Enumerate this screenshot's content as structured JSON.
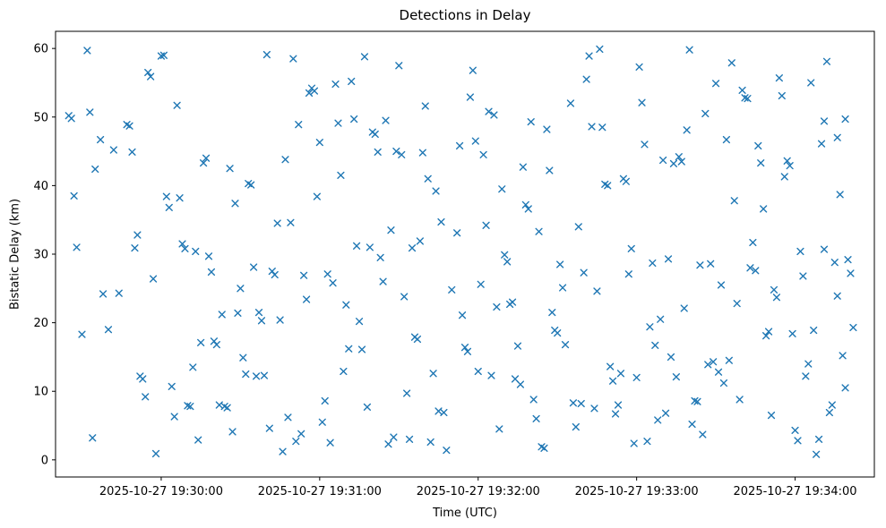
{
  "chart_data": {
    "type": "scatter",
    "title": "Detections in Delay",
    "xlabel": "Time (UTC)",
    "ylabel": "Bistatic Delay (km)",
    "marker": "x",
    "marker_color": "#1f77b4",
    "background": "#ffffff",
    "grid": false,
    "legend": "none",
    "x_axis": {
      "note": "x values are seconds relative to 2025-10-27 19:30:00 UTC",
      "lim": [
        -40,
        270
      ],
      "ticks": [
        {
          "t": 0,
          "label": "2025-10-27 19:30:00"
        },
        {
          "t": 60,
          "label": "2025-10-27 19:31:00"
        },
        {
          "t": 120,
          "label": "2025-10-27 19:32:00"
        },
        {
          "t": 180,
          "label": "2025-10-27 19:33:00"
        },
        {
          "t": 240,
          "label": "2025-10-27 19:34:00"
        }
      ]
    },
    "y_axis": {
      "lim": [
        -2.5,
        62.5
      ],
      "ticks": [
        0,
        10,
        20,
        30,
        40,
        50,
        60
      ]
    },
    "points": [
      [
        -35,
        50.2
      ],
      [
        -34,
        49.8
      ],
      [
        -33,
        38.5
      ],
      [
        -32,
        31.0
      ],
      [
        -30,
        18.3
      ],
      [
        -28,
        59.7
      ],
      [
        -27,
        50.7
      ],
      [
        -26,
        3.2
      ],
      [
        -25,
        42.4
      ],
      [
        -23,
        46.7
      ],
      [
        -22,
        24.2
      ],
      [
        -20,
        19.0
      ],
      [
        -18,
        45.2
      ],
      [
        -16,
        24.3
      ],
      [
        -13,
        48.9
      ],
      [
        -12,
        48.7
      ],
      [
        -11,
        44.9
      ],
      [
        -10,
        30.9
      ],
      [
        -9,
        32.8
      ],
      [
        -8,
        12.2
      ],
      [
        -7,
        11.8
      ],
      [
        -6,
        9.2
      ],
      [
        -5,
        56.5
      ],
      [
        -4,
        55.9
      ],
      [
        -3,
        26.4
      ],
      [
        -2,
        0.9
      ],
      [
        0,
        58.9
      ],
      [
        1,
        59.0
      ],
      [
        2,
        38.4
      ],
      [
        3,
        36.8
      ],
      [
        4,
        10.7
      ],
      [
        5,
        6.3
      ],
      [
        6,
        51.7
      ],
      [
        7,
        38.2
      ],
      [
        8,
        31.5
      ],
      [
        9,
        30.8
      ],
      [
        10,
        7.9
      ],
      [
        11,
        7.8
      ],
      [
        12,
        13.5
      ],
      [
        13,
        30.4
      ],
      [
        14,
        2.9
      ],
      [
        15,
        17.1
      ],
      [
        16,
        43.3
      ],
      [
        17,
        44.0
      ],
      [
        18,
        29.7
      ],
      [
        19,
        27.4
      ],
      [
        20,
        17.3
      ],
      [
        21,
        16.8
      ],
      [
        22,
        8.0
      ],
      [
        23,
        21.2
      ],
      [
        24,
        7.8
      ],
      [
        25,
        7.6
      ],
      [
        26,
        42.5
      ],
      [
        27,
        4.1
      ],
      [
        28,
        37.4
      ],
      [
        29,
        21.4
      ],
      [
        30,
        25.0
      ],
      [
        31,
        14.9
      ],
      [
        32,
        12.5
      ],
      [
        33,
        40.3
      ],
      [
        34,
        40.1
      ],
      [
        35,
        28.1
      ],
      [
        36,
        12.2
      ],
      [
        37,
        21.5
      ],
      [
        38,
        20.3
      ],
      [
        39,
        12.3
      ],
      [
        40,
        59.1
      ],
      [
        41,
        4.6
      ],
      [
        42,
        27.5
      ],
      [
        43,
        27.0
      ],
      [
        44,
        34.5
      ],
      [
        45,
        20.4
      ],
      [
        46,
        1.2
      ],
      [
        47,
        43.8
      ],
      [
        48,
        6.2
      ],
      [
        49,
        34.6
      ],
      [
        50,
        58.5
      ],
      [
        51,
        2.7
      ],
      [
        52,
        48.9
      ],
      [
        53,
        3.8
      ],
      [
        54,
        26.9
      ],
      [
        55,
        23.4
      ],
      [
        56,
        53.5
      ],
      [
        57,
        54.2
      ],
      [
        58,
        53.8
      ],
      [
        59,
        38.4
      ],
      [
        60,
        46.3
      ],
      [
        61,
        5.5
      ],
      [
        62,
        8.6
      ],
      [
        63,
        27.1
      ],
      [
        64,
        2.5
      ],
      [
        65,
        25.8
      ],
      [
        66,
        54.8
      ],
      [
        67,
        49.1
      ],
      [
        68,
        41.5
      ],
      [
        69,
        12.9
      ],
      [
        70,
        22.6
      ],
      [
        71,
        16.2
      ],
      [
        72,
        55.2
      ],
      [
        73,
        49.7
      ],
      [
        74,
        31.2
      ],
      [
        75,
        20.2
      ],
      [
        76,
        16.1
      ],
      [
        77,
        58.8
      ],
      [
        78,
        7.7
      ],
      [
        79,
        31.0
      ],
      [
        80,
        47.8
      ],
      [
        81,
        47.5
      ],
      [
        82,
        44.9
      ],
      [
        83,
        29.5
      ],
      [
        84,
        26.0
      ],
      [
        85,
        49.5
      ],
      [
        86,
        2.3
      ],
      [
        87,
        33.5
      ],
      [
        88,
        3.3
      ],
      [
        89,
        45.0
      ],
      [
        90,
        57.5
      ],
      [
        91,
        44.5
      ],
      [
        92,
        23.8
      ],
      [
        93,
        9.7
      ],
      [
        94,
        3.0
      ],
      [
        95,
        30.9
      ],
      [
        96,
        17.9
      ],
      [
        97,
        17.6
      ],
      [
        98,
        31.9
      ],
      [
        99,
        44.8
      ],
      [
        100,
        51.6
      ],
      [
        101,
        41.0
      ],
      [
        102,
        2.6
      ],
      [
        103,
        12.6
      ],
      [
        104,
        39.2
      ],
      [
        105,
        7.1
      ],
      [
        106,
        34.7
      ],
      [
        107,
        6.9
      ],
      [
        108,
        1.4
      ],
      [
        110,
        24.8
      ],
      [
        112,
        33.1
      ],
      [
        113,
        45.8
      ],
      [
        114,
        21.1
      ],
      [
        115,
        16.4
      ],
      [
        116,
        15.8
      ],
      [
        117,
        52.9
      ],
      [
        118,
        56.8
      ],
      [
        119,
        46.5
      ],
      [
        120,
        12.9
      ],
      [
        121,
        25.6
      ],
      [
        122,
        44.5
      ],
      [
        123,
        34.2
      ],
      [
        124,
        50.8
      ],
      [
        125,
        12.3
      ],
      [
        126,
        50.3
      ],
      [
        127,
        22.3
      ],
      [
        128,
        4.5
      ],
      [
        129,
        39.5
      ],
      [
        130,
        29.9
      ],
      [
        131,
        28.9
      ],
      [
        132,
        22.7
      ],
      [
        133,
        23.0
      ],
      [
        134,
        11.8
      ],
      [
        135,
        16.6
      ],
      [
        136,
        11.0
      ],
      [
        137,
        42.7
      ],
      [
        138,
        37.2
      ],
      [
        139,
        36.6
      ],
      [
        140,
        49.3
      ],
      [
        141,
        8.8
      ],
      [
        142,
        6.0
      ],
      [
        143,
        33.3
      ],
      [
        144,
        1.9
      ],
      [
        145,
        1.7
      ],
      [
        146,
        48.2
      ],
      [
        147,
        42.2
      ],
      [
        148,
        21.5
      ],
      [
        149,
        18.9
      ],
      [
        150,
        18.5
      ],
      [
        151,
        28.5
      ],
      [
        152,
        25.1
      ],
      [
        153,
        16.8
      ],
      [
        155,
        52.0
      ],
      [
        156,
        8.3
      ],
      [
        157,
        4.8
      ],
      [
        158,
        34.0
      ],
      [
        159,
        8.2
      ],
      [
        160,
        27.3
      ],
      [
        161,
        55.5
      ],
      [
        162,
        58.9
      ],
      [
        163,
        48.6
      ],
      [
        164,
        7.5
      ],
      [
        165,
        24.6
      ],
      [
        166,
        59.9
      ],
      [
        167,
        48.5
      ],
      [
        168,
        40.2
      ],
      [
        169,
        40.0
      ],
      [
        170,
        13.6
      ],
      [
        171,
        11.5
      ],
      [
        172,
        6.7
      ],
      [
        173,
        8.0
      ],
      [
        174,
        12.6
      ],
      [
        175,
        41.0
      ],
      [
        176,
        40.6
      ],
      [
        177,
        27.1
      ],
      [
        178,
        30.8
      ],
      [
        179,
        2.4
      ],
      [
        180,
        12.0
      ],
      [
        181,
        57.3
      ],
      [
        182,
        52.1
      ],
      [
        183,
        46.0
      ],
      [
        184,
        2.7
      ],
      [
        185,
        19.4
      ],
      [
        186,
        28.7
      ],
      [
        187,
        16.7
      ],
      [
        188,
        5.8
      ],
      [
        189,
        20.5
      ],
      [
        190,
        43.7
      ],
      [
        191,
        6.8
      ],
      [
        192,
        29.3
      ],
      [
        193,
        15.0
      ],
      [
        194,
        43.2
      ],
      [
        195,
        12.1
      ],
      [
        196,
        44.2
      ],
      [
        197,
        43.5
      ],
      [
        198,
        22.1
      ],
      [
        199,
        48.1
      ],
      [
        200,
        59.8
      ],
      [
        201,
        5.2
      ],
      [
        202,
        8.6
      ],
      [
        203,
        8.5
      ],
      [
        204,
        28.4
      ],
      [
        205,
        3.7
      ],
      [
        206,
        50.5
      ],
      [
        207,
        13.9
      ],
      [
        208,
        28.6
      ],
      [
        209,
        14.3
      ],
      [
        210,
        54.9
      ],
      [
        211,
        12.8
      ],
      [
        212,
        25.5
      ],
      [
        213,
        11.2
      ],
      [
        214,
        46.7
      ],
      [
        215,
        14.5
      ],
      [
        216,
        57.9
      ],
      [
        217,
        37.8
      ],
      [
        218,
        22.8
      ],
      [
        219,
        8.8
      ],
      [
        220,
        53.9
      ],
      [
        221,
        52.8
      ],
      [
        222,
        52.7
      ],
      [
        223,
        28.0
      ],
      [
        224,
        31.7
      ],
      [
        225,
        27.6
      ],
      [
        226,
        45.8
      ],
      [
        227,
        43.3
      ],
      [
        228,
        36.6
      ],
      [
        229,
        18.1
      ],
      [
        230,
        18.7
      ],
      [
        231,
        6.5
      ],
      [
        232,
        24.8
      ],
      [
        233,
        23.7
      ],
      [
        234,
        55.7
      ],
      [
        235,
        53.1
      ],
      [
        236,
        41.3
      ],
      [
        237,
        43.6
      ],
      [
        238,
        42.9
      ],
      [
        239,
        18.4
      ],
      [
        240,
        4.3
      ],
      [
        241,
        2.8
      ],
      [
        242,
        30.4
      ],
      [
        243,
        26.8
      ],
      [
        244,
        12.2
      ],
      [
        245,
        14.0
      ],
      [
        246,
        55.0
      ],
      [
        247,
        18.9
      ],
      [
        248,
        0.8
      ],
      [
        249,
        3.0
      ],
      [
        250,
        46.1
      ],
      [
        251,
        49.4
      ],
      [
        251,
        30.7
      ],
      [
        252,
        58.1
      ],
      [
        253,
        6.9
      ],
      [
        254,
        8.0
      ],
      [
        255,
        28.8
      ],
      [
        256,
        47.0
      ],
      [
        256,
        23.9
      ],
      [
        257,
        38.7
      ],
      [
        258,
        15.2
      ],
      [
        259,
        49.7
      ],
      [
        259,
        10.5
      ],
      [
        260,
        29.2
      ],
      [
        261,
        27.2
      ],
      [
        262,
        19.3
      ]
    ]
  }
}
